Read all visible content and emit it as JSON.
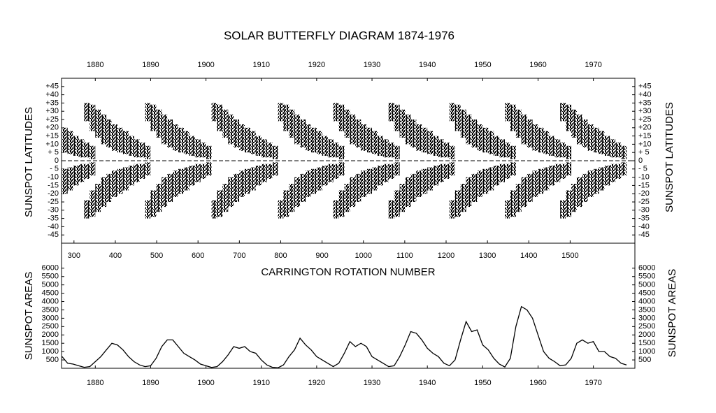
{
  "chart_data": [
    {
      "type": "range",
      "title": "SOLAR BUTTERFLY DIAGRAM 1874-1976",
      "ylabel": "SUNSPOT LATITUDES",
      "x2label": "CARRINGTON ROTATION NUMBER",
      "color": "#000000",
      "xlim": [
        1873.9,
        1977.5
      ],
      "xticks": [
        1880,
        1890,
        1900,
        1910,
        1920,
        1930,
        1940,
        1950,
        1960,
        1970
      ],
      "x2lim": [
        269.9,
        1656.6
      ],
      "x2ticks": [
        300,
        400,
        500,
        600,
        700,
        800,
        900,
        1000,
        1100,
        1200,
        1300,
        1400,
        1500
      ],
      "ylim": [
        -50,
        50
      ],
      "yticks": [
        {
          "value": 45,
          "label": "+45"
        },
        {
          "value": 40,
          "label": "+40"
        },
        {
          "value": 35,
          "label": "+35"
        },
        {
          "value": 30,
          "label": "+30"
        },
        {
          "value": 25,
          "label": "+25"
        },
        {
          "value": 20,
          "label": "+20"
        },
        {
          "value": 15,
          "label": "+15"
        },
        {
          "value": 10,
          "label": "+10"
        },
        {
          "value": 5,
          "label": "+ 5"
        },
        0,
        {
          "value": -5,
          "label": "- 5"
        },
        -10,
        -15,
        -20,
        -25,
        -30,
        -35,
        -40,
        -45
      ],
      "series": [
        {
          "x": [
            1874,
            1875,
            1876,
            1877,
            1878,
            1879
          ],
          "lows": [
            5,
            4,
            3,
            2,
            2,
            1
          ],
          "highs": [
            20,
            18,
            15,
            13,
            11,
            9
          ]
        },
        {
          "x": [
            1874,
            1875,
            1876,
            1877,
            1878,
            1879
          ],
          "lows": [
            -20,
            -18,
            -15,
            -13,
            -11,
            -9
          ],
          "highs": [
            -5,
            -4,
            -3,
            -2,
            -2,
            -1
          ]
        },
        {
          "x": [
            1878,
            1879,
            1880,
            1881,
            1882,
            1883,
            1884,
            1885,
            1886,
            1887,
            1888,
            1889
          ],
          "lows": [
            24,
            18,
            14,
            10,
            8,
            6,
            5,
            4,
            3,
            2,
            2,
            1
          ],
          "highs": [
            35,
            34,
            31,
            28,
            25,
            22,
            20,
            18,
            15,
            13,
            11,
            9
          ]
        },
        {
          "x": [
            1878,
            1879,
            1880,
            1881,
            1882,
            1883,
            1884,
            1885,
            1886,
            1887,
            1888,
            1889
          ],
          "lows": [
            -35,
            -34,
            -31,
            -28,
            -25,
            -22,
            -20,
            -18,
            -15,
            -13,
            -11,
            -9
          ],
          "highs": [
            -24,
            -18,
            -14,
            -10,
            -8,
            -6,
            -5,
            -4,
            -3,
            -2,
            -2,
            -1
          ]
        },
        {
          "x": [
            1889,
            1890,
            1891,
            1892,
            1893,
            1894,
            1895,
            1896,
            1897,
            1898,
            1899,
            1900
          ],
          "lows": [
            24,
            18,
            14,
            10,
            8,
            6,
            5,
            4,
            3,
            2,
            2,
            1
          ],
          "highs": [
            35,
            34,
            31,
            28,
            25,
            22,
            20,
            18,
            15,
            13,
            11,
            9
          ]
        },
        {
          "x": [
            1889,
            1890,
            1891,
            1892,
            1893,
            1894,
            1895,
            1896,
            1897,
            1898,
            1899,
            1900
          ],
          "lows": [
            -35,
            -34,
            -31,
            -28,
            -25,
            -22,
            -20,
            -18,
            -15,
            -13,
            -11,
            -9
          ],
          "highs": [
            -24,
            -18,
            -14,
            -10,
            -8,
            -6,
            -5,
            -4,
            -3,
            -2,
            -2,
            -1
          ]
        },
        {
          "x": [
            1901,
            1902,
            1903,
            1904,
            1905,
            1906,
            1907,
            1908,
            1909,
            1910,
            1911,
            1912
          ],
          "lows": [
            24,
            18,
            14,
            10,
            8,
            6,
            5,
            4,
            3,
            2,
            2,
            1
          ],
          "highs": [
            35,
            34,
            31,
            28,
            25,
            22,
            20,
            18,
            15,
            13,
            11,
            9
          ]
        },
        {
          "x": [
            1901,
            1902,
            1903,
            1904,
            1905,
            1906,
            1907,
            1908,
            1909,
            1910,
            1911,
            1912
          ],
          "lows": [
            -35,
            -34,
            -31,
            -28,
            -25,
            -22,
            -20,
            -18,
            -15,
            -13,
            -11,
            -9
          ],
          "highs": [
            -24,
            -18,
            -14,
            -10,
            -8,
            -6,
            -5,
            -4,
            -3,
            -2,
            -2,
            -1
          ]
        },
        {
          "x": [
            1913,
            1914,
            1915,
            1916,
            1917,
            1918,
            1919,
            1920,
            1921,
            1922,
            1923,
            1924
          ],
          "lows": [
            24,
            18,
            14,
            10,
            8,
            6,
            5,
            4,
            3,
            2,
            2,
            1
          ],
          "highs": [
            35,
            34,
            31,
            28,
            25,
            22,
            20,
            18,
            15,
            13,
            11,
            9
          ]
        },
        {
          "x": [
            1913,
            1914,
            1915,
            1916,
            1917,
            1918,
            1919,
            1920,
            1921,
            1922,
            1923,
            1924
          ],
          "lows": [
            -35,
            -34,
            -31,
            -28,
            -25,
            -22,
            -20,
            -18,
            -15,
            -13,
            -11,
            -9
          ],
          "highs": [
            -24,
            -18,
            -14,
            -10,
            -8,
            -6,
            -5,
            -4,
            -3,
            -2,
            -2,
            -1
          ]
        },
        {
          "x": [
            1923,
            1924,
            1925,
            1926,
            1927,
            1928,
            1929,
            1930,
            1931,
            1932,
            1933,
            1934
          ],
          "lows": [
            24,
            18,
            14,
            10,
            8,
            6,
            5,
            4,
            3,
            2,
            2,
            1
          ],
          "highs": [
            35,
            34,
            31,
            28,
            25,
            22,
            20,
            18,
            15,
            13,
            11,
            9
          ]
        },
        {
          "x": [
            1923,
            1924,
            1925,
            1926,
            1927,
            1928,
            1929,
            1930,
            1931,
            1932,
            1933,
            1934
          ],
          "lows": [
            -35,
            -34,
            -31,
            -28,
            -25,
            -22,
            -20,
            -18,
            -15,
            -13,
            -11,
            -9
          ],
          "highs": [
            -24,
            -18,
            -14,
            -10,
            -8,
            -6,
            -5,
            -4,
            -3,
            -2,
            -2,
            -1
          ]
        },
        {
          "x": [
            1933,
            1934,
            1935,
            1936,
            1937,
            1938,
            1939,
            1940,
            1941,
            1942,
            1943,
            1944
          ],
          "lows": [
            24,
            18,
            14,
            10,
            8,
            6,
            5,
            4,
            3,
            2,
            2,
            1
          ],
          "highs": [
            35,
            34,
            31,
            28,
            25,
            22,
            20,
            18,
            15,
            13,
            11,
            9
          ]
        },
        {
          "x": [
            1933,
            1934,
            1935,
            1936,
            1937,
            1938,
            1939,
            1940,
            1941,
            1942,
            1943,
            1944
          ],
          "lows": [
            -35,
            -34,
            -31,
            -28,
            -25,
            -22,
            -20,
            -18,
            -15,
            -13,
            -11,
            -9
          ],
          "highs": [
            -24,
            -18,
            -14,
            -10,
            -8,
            -6,
            -5,
            -4,
            -3,
            -2,
            -2,
            -1
          ]
        },
        {
          "x": [
            1944,
            1945,
            1946,
            1947,
            1948,
            1949,
            1950,
            1951,
            1952,
            1953,
            1954,
            1955
          ],
          "lows": [
            24,
            18,
            14,
            10,
            8,
            6,
            5,
            4,
            3,
            2,
            2,
            1
          ],
          "highs": [
            35,
            34,
            31,
            28,
            25,
            22,
            20,
            18,
            15,
            13,
            11,
            9
          ]
        },
        {
          "x": [
            1944,
            1945,
            1946,
            1947,
            1948,
            1949,
            1950,
            1951,
            1952,
            1953,
            1954,
            1955
          ],
          "lows": [
            -35,
            -34,
            -31,
            -28,
            -25,
            -22,
            -20,
            -18,
            -15,
            -13,
            -11,
            -9
          ],
          "highs": [
            -24,
            -18,
            -14,
            -10,
            -8,
            -6,
            -5,
            -4,
            -3,
            -2,
            -2,
            -1
          ]
        },
        {
          "x": [
            1954,
            1955,
            1956,
            1957,
            1958,
            1959,
            1960,
            1961,
            1962,
            1963,
            1964,
            1965
          ],
          "lows": [
            24,
            18,
            14,
            10,
            8,
            6,
            5,
            4,
            3,
            2,
            2,
            1
          ],
          "highs": [
            35,
            34,
            31,
            28,
            25,
            22,
            20,
            18,
            15,
            13,
            11,
            9
          ]
        },
        {
          "x": [
            1954,
            1955,
            1956,
            1957,
            1958,
            1959,
            1960,
            1961,
            1962,
            1963,
            1964,
            1965
          ],
          "lows": [
            -35,
            -34,
            -31,
            -28,
            -25,
            -22,
            -20,
            -18,
            -15,
            -13,
            -11,
            -9
          ],
          "highs": [
            -24,
            -18,
            -14,
            -10,
            -8,
            -6,
            -5,
            -4,
            -3,
            -2,
            -2,
            -1
          ]
        },
        {
          "x": [
            1964,
            1965,
            1966,
            1967,
            1968,
            1969,
            1970,
            1971,
            1972,
            1973,
            1974,
            1975
          ],
          "lows": [
            24,
            18,
            14,
            10,
            8,
            6,
            5,
            4,
            3,
            2,
            2,
            1
          ],
          "highs": [
            35,
            34,
            31,
            28,
            25,
            22,
            20,
            18,
            15,
            13,
            11,
            9
          ]
        },
        {
          "x": [
            1964,
            1965,
            1966,
            1967,
            1968,
            1969,
            1970,
            1971,
            1972,
            1973,
            1974,
            1975
          ],
          "lows": [
            -35,
            -34,
            -31,
            -28,
            -25,
            -22,
            -20,
            -18,
            -15,
            -13,
            -11,
            -9
          ],
          "highs": [
            -24,
            -18,
            -14,
            -10,
            -8,
            -6,
            -5,
            -4,
            -3,
            -2,
            -2,
            -1
          ]
        }
      ]
    },
    {
      "type": "line",
      "ylabel": "SUNSPOT AREAS",
      "color": "#000000",
      "xlim": [
        1873.9,
        1977.5
      ],
      "xticks": [
        1880,
        1890,
        1900,
        1910,
        1920,
        1930,
        1940,
        1950,
        1960,
        1970
      ],
      "ylim": [
        0,
        7500
      ],
      "yticks": [
        500,
        1000,
        1500,
        2000,
        2500,
        3000,
        3500,
        4000,
        4500,
        5000,
        5500,
        6000
      ],
      "x": [
        1874,
        1875,
        1876,
        1877,
        1878,
        1879,
        1880,
        1881,
        1882,
        1883,
        1884,
        1885,
        1886,
        1887,
        1888,
        1889,
        1890,
        1891,
        1892,
        1893,
        1894,
        1895,
        1896,
        1897,
        1898,
        1899,
        1900,
        1901,
        1902,
        1903,
        1904,
        1905,
        1906,
        1907,
        1908,
        1909,
        1910,
        1911,
        1912,
        1913,
        1914,
        1915,
        1916,
        1917,
        1918,
        1919,
        1920,
        1921,
        1922,
        1923,
        1924,
        1925,
        1926,
        1927,
        1928,
        1929,
        1930,
        1931,
        1932,
        1933,
        1934,
        1935,
        1936,
        1937,
        1938,
        1939,
        1940,
        1941,
        1942,
        1943,
        1944,
        1945,
        1946,
        1947,
        1948,
        1949,
        1950,
        1951,
        1952,
        1953,
        1954,
        1955,
        1956,
        1957,
        1958,
        1959,
        1960,
        1961,
        1962,
        1963,
        1964,
        1965,
        1966,
        1967,
        1968,
        1969,
        1970,
        1971,
        1972,
        1973,
        1974,
        1975,
        1976
      ],
      "values": [
        700,
        300,
        250,
        150,
        60,
        100,
        400,
        700,
        1100,
        1500,
        1400,
        1100,
        700,
        400,
        200,
        100,
        150,
        600,
        1300,
        1700,
        1700,
        1300,
        900,
        700,
        500,
        250,
        150,
        50,
        100,
        400,
        800,
        1300,
        1200,
        1300,
        1000,
        900,
        500,
        200,
        60,
        30,
        200,
        700,
        1100,
        1800,
        1400,
        1100,
        700,
        500,
        300,
        100,
        300,
        900,
        1600,
        1300,
        1500,
        1300,
        700,
        500,
        300,
        100,
        150,
        700,
        1400,
        2200,
        2100,
        1700,
        1200,
        900,
        700,
        300,
        150,
        500,
        1700,
        2800,
        2200,
        2300,
        1400,
        1100,
        600,
        250,
        80,
        600,
        2500,
        3700,
        3500,
        3000,
        2000,
        1000,
        600,
        400,
        150,
        200,
        600,
        1500,
        1700,
        1500,
        1600,
        1000,
        1000,
        700,
        600,
        300,
        200
      ]
    }
  ]
}
